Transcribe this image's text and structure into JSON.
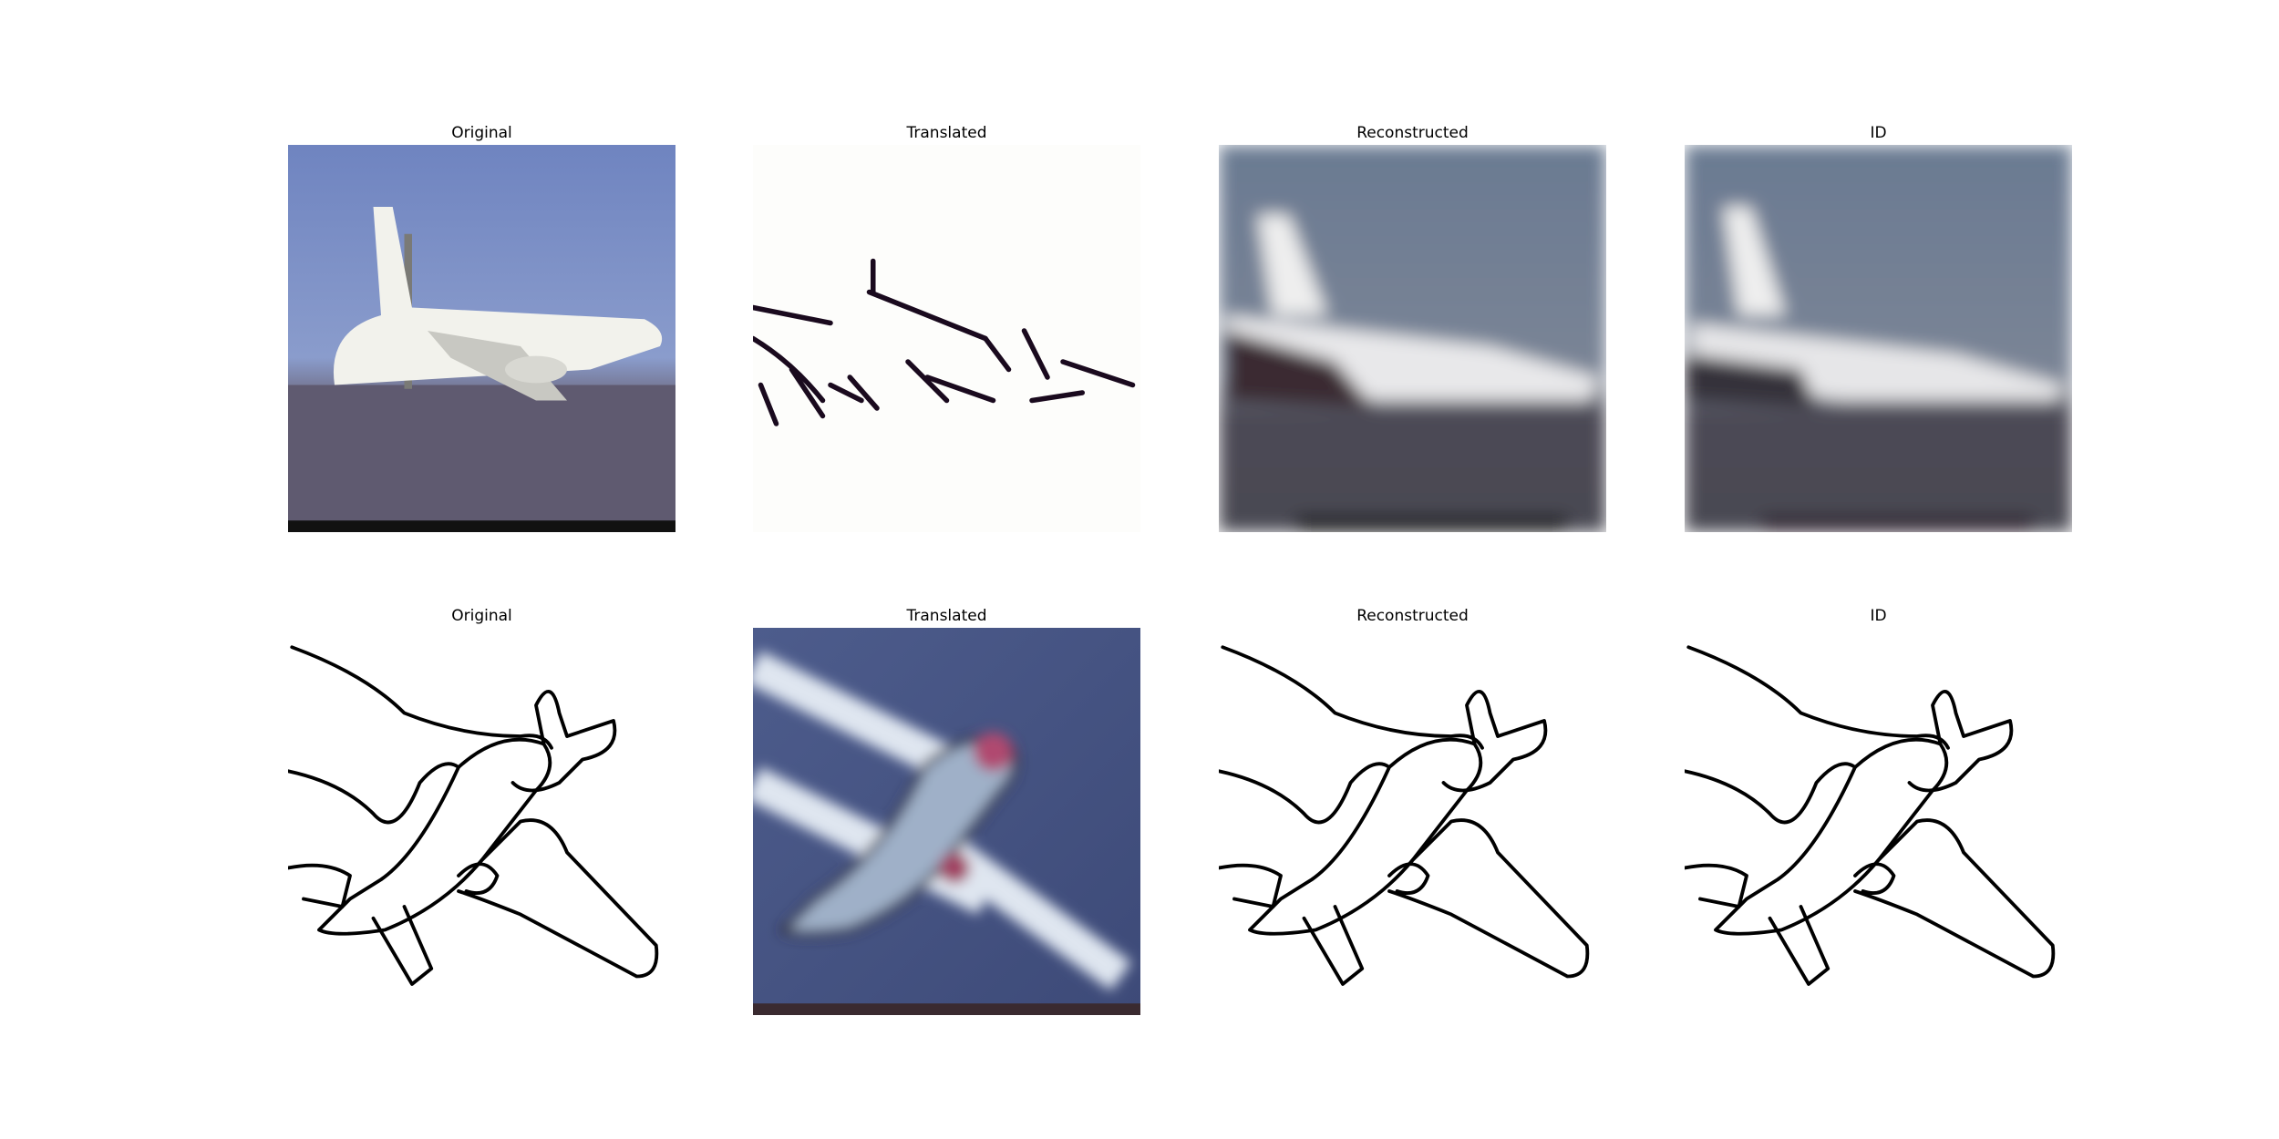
{
  "rows": [
    [
      "Original",
      "Translated",
      "Reconstructed",
      "ID"
    ],
    [
      "Original",
      "Translated",
      "Reconstructed",
      "ID"
    ]
  ]
}
